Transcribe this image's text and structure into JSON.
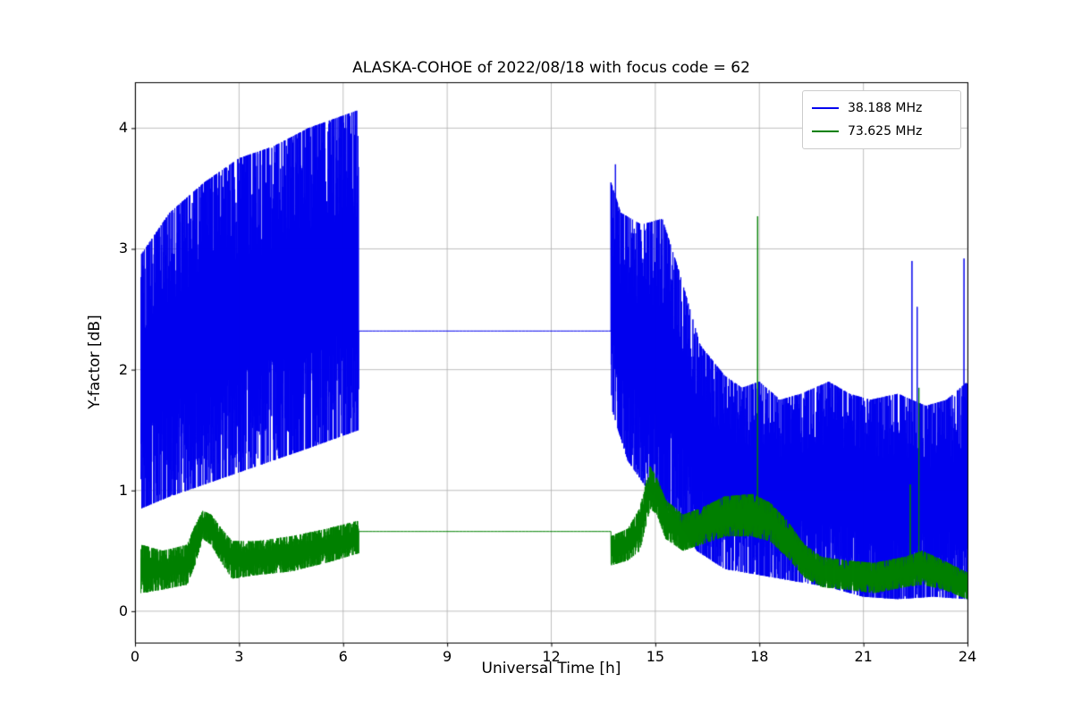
{
  "chart_data": {
    "type": "line",
    "title": "ALASKA-COHOE of 2022/08/18 with focus code = 62",
    "xlabel": "Universal Time [h]",
    "ylabel": "Y-factor [dB]",
    "xlim": [
      0,
      24
    ],
    "ylim": [
      -0.26,
      4.38
    ],
    "xticks": [
      0,
      3,
      6,
      9,
      12,
      15,
      18,
      21,
      24
    ],
    "yticks": [
      0,
      1,
      2,
      3,
      4
    ],
    "grid": true,
    "legend_position": "upper right",
    "colors": {
      "background": "#ffffff",
      "grid": "#b0b0b0",
      "axes": "#000000"
    },
    "series": [
      {
        "name": "38.188 MHz",
        "color": "#0000ee",
        "segments": [
          {
            "kind": "band",
            "t0": 0.17,
            "t1": 6.45,
            "lower_pts": [
              [
                0.17,
                0.85
              ],
              [
                1,
                0.95
              ],
              [
                2,
                1.05
              ],
              [
                3,
                1.15
              ],
              [
                4,
                1.25
              ],
              [
                5,
                1.35
              ],
              [
                6.45,
                1.5
              ]
            ],
            "upper_pts": [
              [
                0.17,
                2.95
              ],
              [
                1,
                3.3
              ],
              [
                2,
                3.55
              ],
              [
                3,
                3.75
              ],
              [
                4,
                3.85
              ],
              [
                5,
                4.0
              ],
              [
                6.45,
                4.15
              ]
            ],
            "spikes": []
          },
          {
            "kind": "flat",
            "t0": 6.45,
            "t1": 13.72,
            "value": 2.32
          },
          {
            "kind": "band",
            "t0": 13.72,
            "t1": 24.0,
            "lower_pts": [
              [
                13.72,
                1.7
              ],
              [
                14.2,
                1.25
              ],
              [
                14.8,
                1.0
              ],
              [
                15.5,
                0.8
              ],
              [
                16.2,
                0.5
              ],
              [
                17,
                0.35
              ],
              [
                18,
                0.3
              ],
              [
                19,
                0.25
              ],
              [
                20,
                0.2
              ],
              [
                21,
                0.12
              ],
              [
                22,
                0.1
              ],
              [
                23,
                0.12
              ],
              [
                24,
                0.1
              ]
            ],
            "upper_pts": [
              [
                13.72,
                3.55
              ],
              [
                14.0,
                3.3
              ],
              [
                14.6,
                3.2
              ],
              [
                15.2,
                3.25
              ],
              [
                15.7,
                2.8
              ],
              [
                16.3,
                2.2
              ],
              [
                17,
                1.95
              ],
              [
                17.5,
                1.85
              ],
              [
                18,
                1.9
              ],
              [
                18.6,
                1.75
              ],
              [
                19.2,
                1.8
              ],
              [
                20,
                1.9
              ],
              [
                20.6,
                1.8
              ],
              [
                21.2,
                1.75
              ],
              [
                22,
                1.8
              ],
              [
                22.8,
                1.7
              ],
              [
                23.4,
                1.75
              ],
              [
                24,
                1.9
              ]
            ],
            "spikes": [
              [
                13.85,
                3.7
              ],
              [
                22.4,
                2.9
              ],
              [
                22.55,
                2.52
              ],
              [
                23.9,
                2.92
              ]
            ]
          }
        ]
      },
      {
        "name": "73.625 MHz",
        "color": "#008000",
        "segments": [
          {
            "kind": "band",
            "t0": 0.17,
            "t1": 6.45,
            "lower_pts": [
              [
                0.17,
                0.15
              ],
              [
                0.8,
                0.18
              ],
              [
                1.5,
                0.22
              ],
              [
                1.75,
                0.4
              ],
              [
                1.95,
                0.6
              ],
              [
                2.2,
                0.55
              ],
              [
                2.5,
                0.4
              ],
              [
                2.8,
                0.27
              ],
              [
                3.5,
                0.3
              ],
              [
                4.5,
                0.33
              ],
              [
                5.5,
                0.4
              ],
              [
                6.45,
                0.48
              ]
            ],
            "upper_pts": [
              [
                0.17,
                0.55
              ],
              [
                0.8,
                0.5
              ],
              [
                1.5,
                0.55
              ],
              [
                1.75,
                0.72
              ],
              [
                1.95,
                0.83
              ],
              [
                2.2,
                0.8
              ],
              [
                2.5,
                0.68
              ],
              [
                2.8,
                0.58
              ],
              [
                3.5,
                0.58
              ],
              [
                4.5,
                0.62
              ],
              [
                5.5,
                0.68
              ],
              [
                6.45,
                0.75
              ]
            ],
            "spikes": []
          },
          {
            "kind": "flat",
            "t0": 6.45,
            "t1": 13.72,
            "value": 0.66
          },
          {
            "kind": "band",
            "t0": 13.72,
            "t1": 24.0,
            "lower_pts": [
              [
                13.72,
                0.38
              ],
              [
                14.2,
                0.42
              ],
              [
                14.55,
                0.5
              ],
              [
                14.85,
                0.85
              ],
              [
                15.05,
                0.8
              ],
              [
                15.3,
                0.6
              ],
              [
                15.8,
                0.5
              ],
              [
                16.3,
                0.55
              ],
              [
                17,
                0.62
              ],
              [
                17.8,
                0.62
              ],
              [
                18.3,
                0.58
              ],
              [
                18.8,
                0.45
              ],
              [
                19.3,
                0.28
              ],
              [
                19.8,
                0.2
              ],
              [
                20.5,
                0.18
              ],
              [
                21.3,
                0.15
              ],
              [
                22.2,
                0.2
              ],
              [
                22.7,
                0.22
              ],
              [
                23.3,
                0.18
              ],
              [
                24,
                0.1
              ]
            ],
            "upper_pts": [
              [
                13.72,
                0.62
              ],
              [
                14.2,
                0.68
              ],
              [
                14.55,
                0.85
              ],
              [
                14.85,
                1.2
              ],
              [
                15.05,
                1.1
              ],
              [
                15.3,
                0.92
              ],
              [
                15.8,
                0.8
              ],
              [
                16.3,
                0.85
              ],
              [
                17,
                0.95
              ],
              [
                17.8,
                0.97
              ],
              [
                18.3,
                0.9
              ],
              [
                18.8,
                0.75
              ],
              [
                19.3,
                0.55
              ],
              [
                19.8,
                0.45
              ],
              [
                20.5,
                0.42
              ],
              [
                21.3,
                0.4
              ],
              [
                22.2,
                0.45
              ],
              [
                22.7,
                0.5
              ],
              [
                23.3,
                0.42
              ],
              [
                24,
                0.32
              ]
            ],
            "spikes": [
              [
                17.95,
                3.27
              ],
              [
                22.35,
                1.05
              ],
              [
                22.6,
                1.85
              ]
            ]
          }
        ]
      }
    ]
  }
}
